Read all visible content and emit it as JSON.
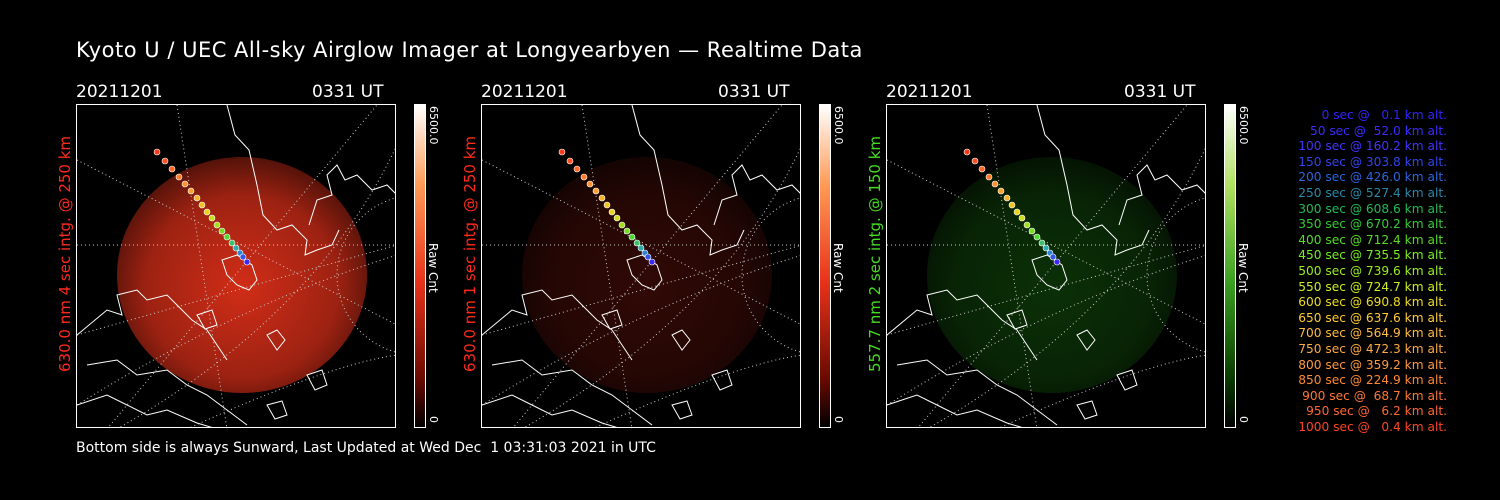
{
  "title": "Kyoto U / UEC All-sky Airglow Imager at Longyearbyen — Realtime Data",
  "footer": "Bottom side is always Sunward, Last Updated at Wed Dec  1 03:31:03 2021 in UTC",
  "panels": [
    {
      "date": "20211201",
      "time": "0331 UT",
      "label": "630.0 nm 4 sec intg. @ 250 km",
      "label_color": "#ff2a1a",
      "cbar_max": "6500.0",
      "cbar_min": "0",
      "cbar_unit": "Raw Cnt",
      "image_color": "#e8321a",
      "brightness": "bright"
    },
    {
      "date": "20211201",
      "time": "0331 UT",
      "label": "630.0 nm 1 sec intg. @ 250 km",
      "label_color": "#ff2a1a",
      "cbar_max": "6500.0",
      "cbar_min": "0",
      "cbar_unit": "Raw Cnt",
      "image_color": "#8a1a10",
      "brightness": "dim"
    },
    {
      "date": "20211201",
      "time": "0331 UT",
      "label": "557.7 nm 2 sec intg. @ 150 km",
      "label_color": "#44dd22",
      "cbar_max": "6500.0",
      "cbar_min": "0",
      "cbar_unit": "Raw Cnt",
      "image_color": "#1f8a14",
      "brightness": "dim"
    }
  ],
  "legend": [
    {
      "text": "0 sec @   0.1 km alt.",
      "color": "#3322ff"
    },
    {
      "text": "50 sec @  52.0 km alt.",
      "color": "#3a2cff"
    },
    {
      "text": "100 sec @ 160.2 km alt.",
      "color": "#4433ff"
    },
    {
      "text": "150 sec @ 303.8 km alt.",
      "color": "#3344ee"
    },
    {
      "text": "200 sec @ 426.0 km alt.",
      "color": "#2a66dd"
    },
    {
      "text": "250 sec @ 527.4 km alt.",
      "color": "#2a88aa"
    },
    {
      "text": "300 sec @ 608.6 km alt.",
      "color": "#22bb55"
    },
    {
      "text": "350 sec @ 670.2 km alt.",
      "color": "#33cc33"
    },
    {
      "text": "400 sec @ 712.4 km alt.",
      "color": "#55dd22"
    },
    {
      "text": "450 sec @ 735.5 km alt.",
      "color": "#77ee22"
    },
    {
      "text": "500 sec @ 739.6 km alt.",
      "color": "#99ee22"
    },
    {
      "text": "550 sec @ 724.7 km alt.",
      "color": "#ccee22"
    },
    {
      "text": "600 sec @ 690.8 km alt.",
      "color": "#eedd22"
    },
    {
      "text": "650 sec @ 637.6 km alt.",
      "color": "#ffcc33"
    },
    {
      "text": "700 sec @ 564.9 km alt.",
      "color": "#ffbb44"
    },
    {
      "text": "750 sec @ 472.3 km alt.",
      "color": "#ffaa44"
    },
    {
      "text": "800 sec @ 359.2 km alt.",
      "color": "#ff9944"
    },
    {
      "text": "850 sec @ 224.9 km alt.",
      "color": "#ff8833"
    },
    {
      "text": "900 sec @  68.7 km alt.",
      "color": "#ff7733"
    },
    {
      "text": "950 sec @   6.2 km alt.",
      "color": "#ff6633"
    },
    {
      "text": "1000 sec @   0.4 km alt.",
      "color": "#ff4422"
    }
  ]
}
